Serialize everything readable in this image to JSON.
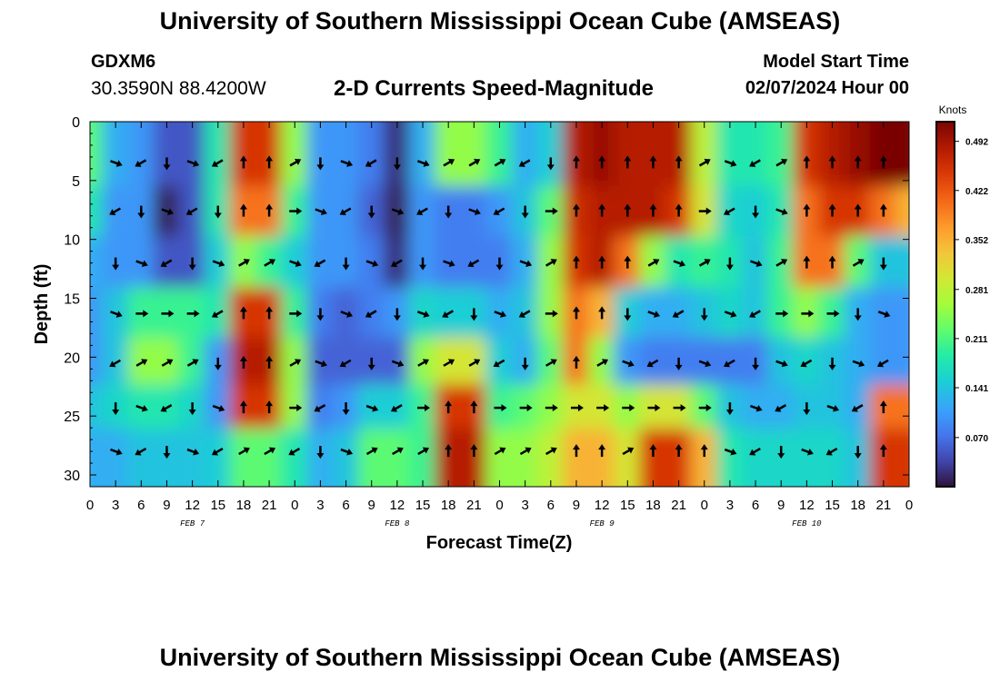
{
  "header": {
    "title": "University of Southern Mississippi Ocean Cube (AMSEAS)",
    "station": "GDXM6",
    "coordinates": "30.3590N  88.4200W",
    "subtitle": "2-D Currents Speed-Magnitude",
    "model_start_label": "Model Start Time",
    "model_start_value": "02/07/2024 Hour 00"
  },
  "footer": {
    "title": "University of Southern Mississippi Ocean Cube (AMSEAS)"
  },
  "chart_data": {
    "type": "heatmap",
    "title": "2-D Currents Speed-Magnitude",
    "xlabel": "Forecast Time(Z)",
    "ylabel": "Depth (ft)",
    "x_tick_labels": [
      "0",
      "3",
      "6",
      "9",
      "12",
      "15",
      "18",
      "21",
      "0",
      "3",
      "6",
      "9",
      "12",
      "15",
      "18",
      "21",
      "0",
      "3",
      "6",
      "9",
      "12",
      "15",
      "18",
      "21",
      "0",
      "3",
      "6",
      "9",
      "12",
      "15",
      "18",
      "21",
      "0"
    ],
    "date_labels": [
      {
        "text": "FEB 7",
        "hour_index": 4
      },
      {
        "text": "FEB 8",
        "hour_index": 12
      },
      {
        "text": "FEB 9",
        "hour_index": 20
      },
      {
        "text": "FEB 10",
        "hour_index": 28
      }
    ],
    "xlim_hours": [
      0,
      96
    ],
    "y_ticks": [
      0,
      5,
      10,
      15,
      20,
      25,
      30
    ],
    "ylim": [
      0,
      31
    ],
    "y_inverted": true,
    "colorbar": {
      "label": "Knots",
      "ticks": [
        "0.492",
        "0.422",
        "0.352",
        "0.281",
        "0.211",
        "0.141",
        "0.070"
      ],
      "range": [
        0,
        0.52
      ]
    },
    "depth_levels_ft": [
      3.5,
      7.6,
      12,
      16.3,
      20.5,
      24.3,
      28
    ],
    "speed_knots": [
      [
        0.22,
        0.12,
        0.1,
        0.05,
        0.05,
        0.18,
        0.45,
        0.45,
        0.25,
        0.1,
        0.1,
        0.08,
        0.02,
        0.12,
        0.25,
        0.25,
        0.2,
        0.12,
        0.15,
        0.48,
        0.5,
        0.48,
        0.48,
        0.48,
        0.28,
        0.18,
        0.18,
        0.2,
        0.45,
        0.48,
        0.5,
        0.52,
        0.52
      ],
      [
        0.18,
        0.1,
        0.1,
        0.01,
        0.05,
        0.18,
        0.4,
        0.4,
        0.2,
        0.1,
        0.1,
        0.06,
        0.01,
        0.1,
        0.08,
        0.08,
        0.1,
        0.14,
        0.22,
        0.46,
        0.48,
        0.48,
        0.48,
        0.45,
        0.3,
        0.16,
        0.15,
        0.18,
        0.4,
        0.45,
        0.45,
        0.4,
        0.35
      ],
      [
        0.12,
        0.1,
        0.1,
        0.05,
        0.05,
        0.15,
        0.25,
        0.2,
        0.15,
        0.1,
        0.1,
        0.08,
        0.02,
        0.1,
        0.08,
        0.08,
        0.08,
        0.12,
        0.25,
        0.45,
        0.48,
        0.4,
        0.25,
        0.18,
        0.2,
        0.18,
        0.14,
        0.2,
        0.4,
        0.4,
        0.22,
        0.14,
        0.14
      ],
      [
        0.1,
        0.14,
        0.2,
        0.2,
        0.2,
        0.18,
        0.45,
        0.45,
        0.2,
        0.08,
        0.06,
        0.08,
        0.1,
        0.16,
        0.15,
        0.15,
        0.12,
        0.14,
        0.25,
        0.4,
        0.35,
        0.15,
        0.12,
        0.12,
        0.14,
        0.16,
        0.14,
        0.2,
        0.25,
        0.2,
        0.12,
        0.1,
        0.1
      ],
      [
        0.1,
        0.14,
        0.25,
        0.25,
        0.2,
        0.1,
        0.48,
        0.48,
        0.25,
        0.06,
        0.06,
        0.06,
        0.06,
        0.25,
        0.3,
        0.3,
        0.15,
        0.12,
        0.22,
        0.4,
        0.25,
        0.1,
        0.08,
        0.08,
        0.08,
        0.08,
        0.08,
        0.14,
        0.16,
        0.14,
        0.12,
        0.1,
        0.1
      ],
      [
        0.14,
        0.16,
        0.18,
        0.18,
        0.16,
        0.1,
        0.45,
        0.45,
        0.25,
        0.08,
        0.1,
        0.15,
        0.15,
        0.2,
        0.45,
        0.45,
        0.2,
        0.22,
        0.25,
        0.3,
        0.3,
        0.25,
        0.3,
        0.3,
        0.22,
        0.14,
        0.12,
        0.12,
        0.14,
        0.14,
        0.12,
        0.4,
        0.4
      ],
      [
        0.12,
        0.12,
        0.14,
        0.14,
        0.14,
        0.15,
        0.22,
        0.22,
        0.18,
        0.12,
        0.14,
        0.22,
        0.22,
        0.2,
        0.48,
        0.48,
        0.25,
        0.25,
        0.28,
        0.35,
        0.35,
        0.3,
        0.45,
        0.45,
        0.35,
        0.18,
        0.16,
        0.16,
        0.16,
        0.16,
        0.14,
        0.45,
        0.45
      ]
    ]
  }
}
